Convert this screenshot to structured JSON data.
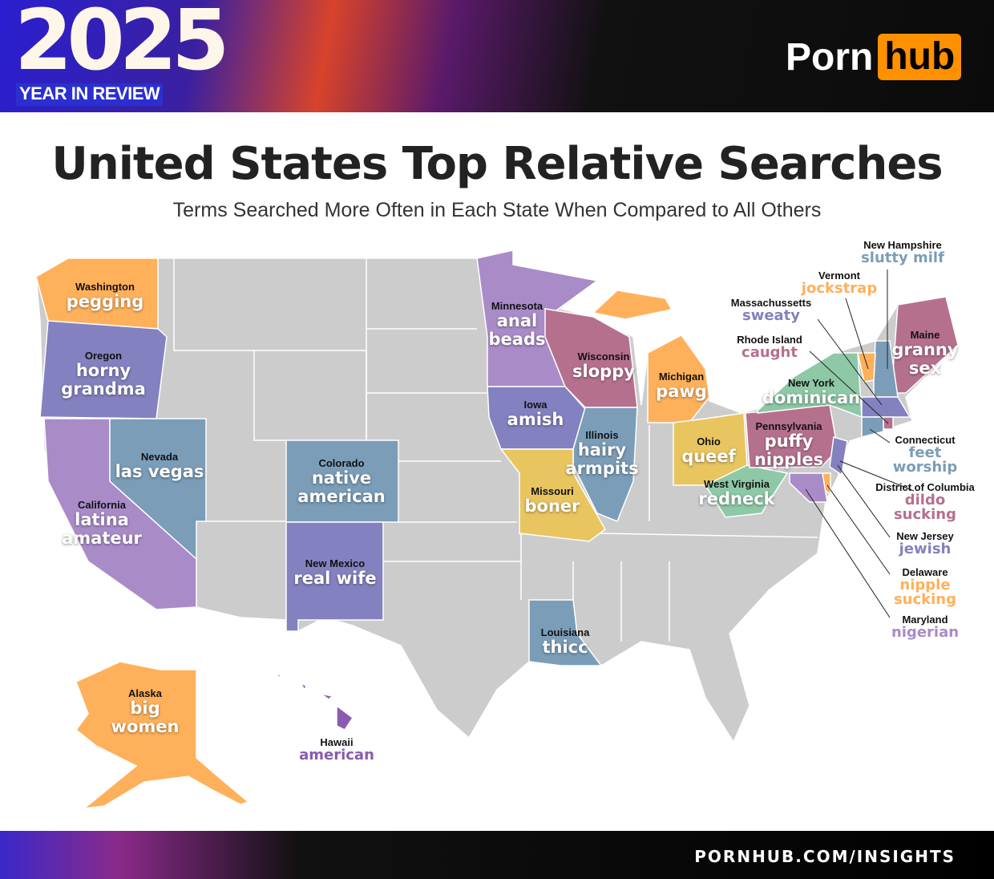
{
  "header": {
    "year": "2025",
    "tagline": "YEAR IN REVIEW",
    "logo_left": "Porn",
    "logo_right": "hub"
  },
  "title": "United States Top Relative Searches",
  "subtitle": "Terms Searched More Often in Each State When Compared to All Others",
  "footer": {
    "url": "PORNHUB.COM/INSIGHTS"
  },
  "colors": {
    "land": "#cccccc",
    "orange": "#ffb05a",
    "lavender": "#a98bc8",
    "indigo": "#8481c0",
    "steel": "#7b9db8",
    "mauve": "#b5708e",
    "yellow": "#e9c560",
    "green": "#8ec8a6",
    "hawaii": "#8a5bb0"
  },
  "states": [
    {
      "id": "WA",
      "name": "Washington",
      "term": "pegging",
      "color": "#ffb05a"
    },
    {
      "id": "OR",
      "name": "Oregon",
      "term": "horny grandma",
      "color": "#8481c0"
    },
    {
      "id": "CA",
      "name": "California",
      "term": "latina amateur",
      "color": "#a98bc8"
    },
    {
      "id": "NV",
      "name": "Nevada",
      "term": "las vegas",
      "color": "#7b9db8"
    },
    {
      "id": "CO",
      "name": "Colorado",
      "term": "native american",
      "color": "#7b9db8"
    },
    {
      "id": "NM",
      "name": "New Mexico",
      "term": "real wife",
      "color": "#8481c0"
    },
    {
      "id": "MN",
      "name": "Minnesota",
      "term": "anal beads",
      "color": "#a98bc8"
    },
    {
      "id": "WI",
      "name": "Wisconsin",
      "term": "sloppy",
      "color": "#b5708e"
    },
    {
      "id": "IA",
      "name": "Iowa",
      "term": "amish",
      "color": "#8481c0"
    },
    {
      "id": "IL",
      "name": "Illinois",
      "term": "hairy armpits",
      "color": "#7b9db8"
    },
    {
      "id": "MO",
      "name": "Missouri",
      "term": "boner",
      "color": "#e9c560"
    },
    {
      "id": "MI",
      "name": "Michigan",
      "term": "pawg",
      "color": "#ffb05a"
    },
    {
      "id": "OH",
      "name": "Ohio",
      "term": "queef",
      "color": "#e9c560"
    },
    {
      "id": "WV",
      "name": "West Virginia",
      "term": "redneck",
      "color": "#8ec8a6"
    },
    {
      "id": "PA",
      "name": "Pennsylvania",
      "term": "puffy nipples",
      "color": "#b5708e"
    },
    {
      "id": "NY",
      "name": "New York",
      "term": "dominican",
      "color": "#8ec8a6"
    },
    {
      "id": "ME",
      "name": "Maine",
      "term": "granny sex",
      "color": "#b5708e"
    },
    {
      "id": "LA",
      "name": "Louisiana",
      "term": "thicc",
      "color": "#7b9db8"
    },
    {
      "id": "AK",
      "name": "Alaska",
      "term": "big women",
      "color": "#ffb05a"
    },
    {
      "id": "HI",
      "name": "Hawaii",
      "term": "american",
      "color": "#8a5bb0"
    },
    {
      "id": "NH",
      "name": "New Hampshire",
      "term": "slutty milf",
      "color": "#7b9db8"
    },
    {
      "id": "VT",
      "name": "Vermont",
      "term": "jockstrap",
      "color": "#ffb05a"
    },
    {
      "id": "MA",
      "name": "Massachussetts",
      "term": "sweaty",
      "color": "#8481c0"
    },
    {
      "id": "RI",
      "name": "Rhode Island",
      "term": "caught",
      "color": "#b5708e"
    },
    {
      "id": "CT",
      "name": "Connecticut",
      "term": "feet worship",
      "color": "#7b9db8"
    },
    {
      "id": "DC",
      "name": "District of Columbia",
      "term": "dildo sucking",
      "color": "#b5708e"
    },
    {
      "id": "NJ",
      "name": "New Jersey",
      "term": "jewish",
      "color": "#8481c0"
    },
    {
      "id": "DE",
      "name": "Delaware",
      "term": "nipple sucking",
      "color": "#ffb05a"
    },
    {
      "id": "MD",
      "name": "Maryland",
      "term": "nigerian",
      "color": "#a98bc8"
    }
  ]
}
